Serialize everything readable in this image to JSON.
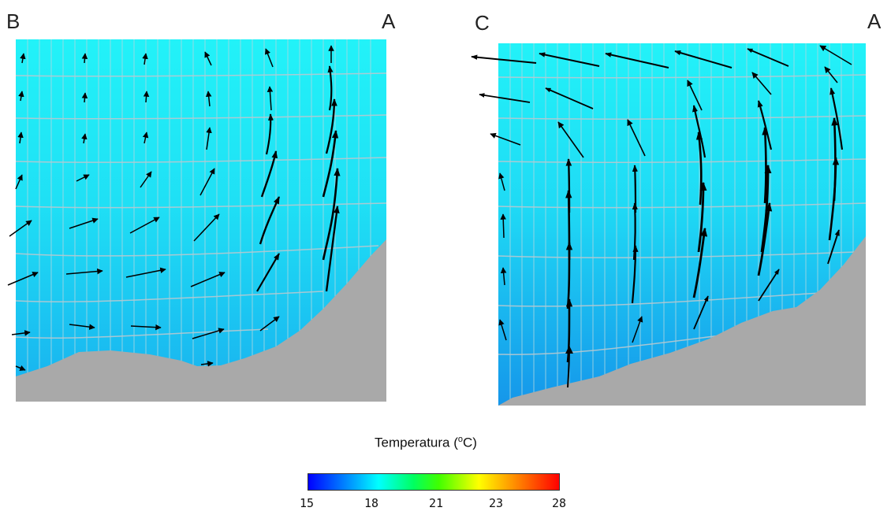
{
  "panels": {
    "left": {
      "label_left": "B",
      "label_right": "A"
    },
    "right": {
      "label_left": "C",
      "label_right": "A"
    }
  },
  "legend": {
    "title": "Temperatura (",
    "unit_sup": "o",
    "unit_end": "C)",
    "ticks": [
      "15",
      "18",
      "21",
      "23",
      "28"
    ]
  },
  "colors": {
    "water_top": "#20f0f8",
    "water_bottom": "#18a8f0",
    "seabed": "#a9a9a9",
    "grid": "#b8c8d0",
    "arrow": "#000000"
  }
}
